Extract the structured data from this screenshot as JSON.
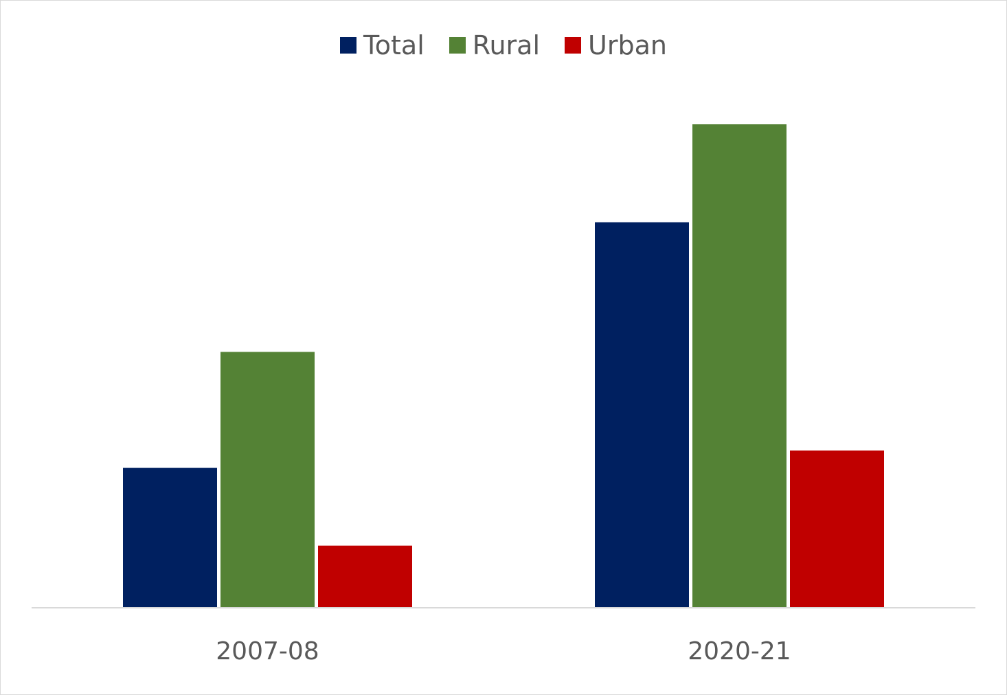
{
  "chart_data": {
    "type": "bar",
    "title": "",
    "xlabel": "",
    "ylabel": "",
    "categories": [
      "2007-08",
      "2020-21"
    ],
    "series": [
      {
        "name": "Total",
        "color": "#002060",
        "values": [
          20.3,
          55.9
        ]
      },
      {
        "name": "Rural",
        "color": "#548235",
        "values": [
          37.1,
          70.1
        ]
      },
      {
        "name": "Urban",
        "color": "#C00000",
        "values": [
          9.0,
          22.8
        ]
      }
    ],
    "ylim": [
      0,
      80
    ],
    "y_axis_visible": false,
    "grid": false,
    "legend_position": "top-center"
  }
}
